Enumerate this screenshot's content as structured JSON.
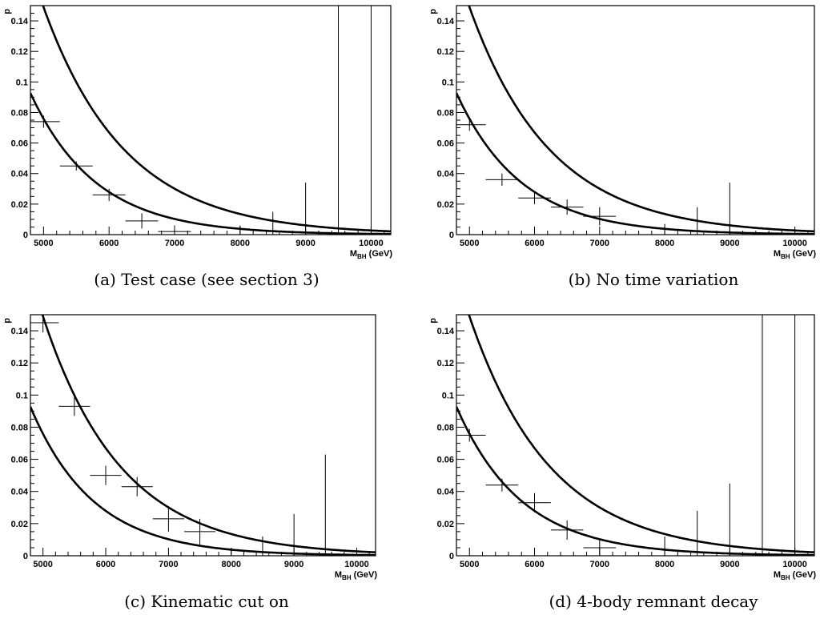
{
  "chart_data": [
    {
      "type": "scatter",
      "caption": "(a) Test case (see section 3)",
      "ylabel": "p",
      "xlabel_main": "M",
      "xlabel_sub": "BH",
      "xlabel_unit": "(GeV)",
      "xlim": [
        4800,
        10300
      ],
      "ylim": [
        0,
        0.15
      ],
      "xticks": [
        "5000",
        "6000",
        "7000",
        "8000",
        "9000",
        "10000"
      ],
      "yticks": [
        "0",
        "0.02",
        "0.04",
        "0.06",
        "0.08",
        "0.1",
        "0.12",
        "0.14"
      ],
      "curves": [
        {
          "amplitude": 0.149,
          "decay": 1250
        },
        {
          "amplitude": 0.0759,
          "decay": 1000
        }
      ],
      "points": [
        {
          "x": 5000,
          "y": 0.074,
          "dx": 250,
          "dy": 0.004
        },
        {
          "x": 5500,
          "y": 0.045,
          "dx": 250,
          "dy": 0.003
        },
        {
          "x": 6000,
          "y": 0.026,
          "dx": 250,
          "dy": 0.004
        },
        {
          "x": 6500,
          "y": 0.009,
          "dx": 250,
          "dy": 0.005
        },
        {
          "x": 7000,
          "y": 0.002,
          "dx": 250,
          "dy": 0.004
        },
        {
          "x": 8000,
          "y": 0.0,
          "dx": 0,
          "dy": 0.006
        },
        {
          "x": 8500,
          "y": 0.0,
          "dx": 0,
          "dy": 0.015
        },
        {
          "x": 9000,
          "y": 0.0,
          "dx": 0,
          "dy": 0.034
        },
        {
          "x": 9500,
          "y": 0.0,
          "dx": 0,
          "dy": 0.2
        },
        {
          "x": 10000,
          "y": 0.0,
          "dx": 0,
          "dy": 0.2
        }
      ]
    },
    {
      "type": "scatter",
      "caption": "(b) No time variation",
      "ylabel": "p",
      "xlabel_main": "M",
      "xlabel_sub": "BH",
      "xlabel_unit": "(GeV)",
      "xlim": [
        4800,
        10300
      ],
      "ylim": [
        0,
        0.15
      ],
      "xticks": [
        "5000",
        "6000",
        "7000",
        "8000",
        "9000",
        "10000"
      ],
      "yticks": [
        "0",
        "0.02",
        "0.04",
        "0.06",
        "0.08",
        "0.1",
        "0.12",
        "0.14"
      ],
      "curves": [
        {
          "amplitude": 0.149,
          "decay": 1250
        },
        {
          "amplitude": 0.0759,
          "decay": 1000
        }
      ],
      "points": [
        {
          "x": 5000,
          "y": 0.072,
          "dx": 250,
          "dy": 0.004
        },
        {
          "x": 5500,
          "y": 0.036,
          "dx": 250,
          "dy": 0.004
        },
        {
          "x": 6000,
          "y": 0.024,
          "dx": 250,
          "dy": 0.004
        },
        {
          "x": 6500,
          "y": 0.018,
          "dx": 250,
          "dy": 0.005
        },
        {
          "x": 7000,
          "y": 0.012,
          "dx": 250,
          "dy": 0.006
        },
        {
          "x": 8000,
          "y": 0.0,
          "dx": 0,
          "dy": 0.007
        },
        {
          "x": 8500,
          "y": 0.0,
          "dx": 0,
          "dy": 0.018
        },
        {
          "x": 9000,
          "y": 0.0,
          "dx": 0,
          "dy": 0.034
        }
      ]
    },
    {
      "type": "scatter",
      "caption": "(c) Kinematic cut on",
      "ylabel": "p",
      "xlabel_main": "M",
      "xlabel_sub": "BH",
      "xlabel_unit": "(GeV)",
      "xlim": [
        4800,
        10300
      ],
      "ylim": [
        0,
        0.15
      ],
      "xticks": [
        "5000",
        "6000",
        "7000",
        "8000",
        "9000",
        "10000"
      ],
      "yticks": [
        "0",
        "0.02",
        "0.04",
        "0.06",
        "0.08",
        "0.1",
        "0.12",
        "0.14"
      ],
      "curves": [
        {
          "amplitude": 0.149,
          "decay": 1250
        },
        {
          "amplitude": 0.0759,
          "decay": 1000
        }
      ],
      "points": [
        {
          "x": 5000,
          "y": 0.145,
          "dx": 250,
          "dy": 0.006
        },
        {
          "x": 5500,
          "y": 0.093,
          "dx": 250,
          "dy": 0.006
        },
        {
          "x": 6000,
          "y": 0.05,
          "dx": 250,
          "dy": 0.006
        },
        {
          "x": 6500,
          "y": 0.043,
          "dx": 250,
          "dy": 0.006
        },
        {
          "x": 7000,
          "y": 0.023,
          "dx": 250,
          "dy": 0.008
        },
        {
          "x": 7500,
          "y": 0.015,
          "dx": 250,
          "dy": 0.008
        },
        {
          "x": 8000,
          "y": 0.0,
          "dx": 0,
          "dy": 0.004
        },
        {
          "x": 8500,
          "y": 0.0,
          "dx": 0,
          "dy": 0.012
        },
        {
          "x": 9000,
          "y": 0.0,
          "dx": 0,
          "dy": 0.026
        },
        {
          "x": 9500,
          "y": 0.0,
          "dx": 0,
          "dy": 0.063
        }
      ]
    },
    {
      "type": "scatter",
      "caption": "(d) 4-body remnant decay",
      "ylabel": "p",
      "xlabel_main": "M",
      "xlabel_sub": "BH",
      "xlabel_unit": "(GeV)",
      "xlim": [
        4800,
        10300
      ],
      "ylim": [
        0,
        0.15
      ],
      "xticks": [
        "5000",
        "6000",
        "7000",
        "8000",
        "9000",
        "10000"
      ],
      "yticks": [
        "0",
        "0.02",
        "0.04",
        "0.06",
        "0.08",
        "0.1",
        "0.12",
        "0.14"
      ],
      "curves": [
        {
          "amplitude": 0.149,
          "decay": 1250
        },
        {
          "amplitude": 0.0759,
          "decay": 1000
        }
      ],
      "points": [
        {
          "x": 5000,
          "y": 0.075,
          "dx": 250,
          "dy": 0.004
        },
        {
          "x": 5500,
          "y": 0.044,
          "dx": 250,
          "dy": 0.004
        },
        {
          "x": 6000,
          "y": 0.033,
          "dx": 250,
          "dy": 0.006
        },
        {
          "x": 6500,
          "y": 0.016,
          "dx": 250,
          "dy": 0.006
        },
        {
          "x": 7000,
          "y": 0.005,
          "dx": 250,
          "dy": 0.005
        },
        {
          "x": 8000,
          "y": 0.0,
          "dx": 0,
          "dy": 0.012
        },
        {
          "x": 8500,
          "y": 0.0,
          "dx": 0,
          "dy": 0.028
        },
        {
          "x": 9000,
          "y": 0.0,
          "dx": 0,
          "dy": 0.045
        },
        {
          "x": 9500,
          "y": 0.0,
          "dx": 0,
          "dy": 0.2
        },
        {
          "x": 10000,
          "y": 0.0,
          "dx": 0,
          "dy": 0.2
        }
      ]
    }
  ]
}
